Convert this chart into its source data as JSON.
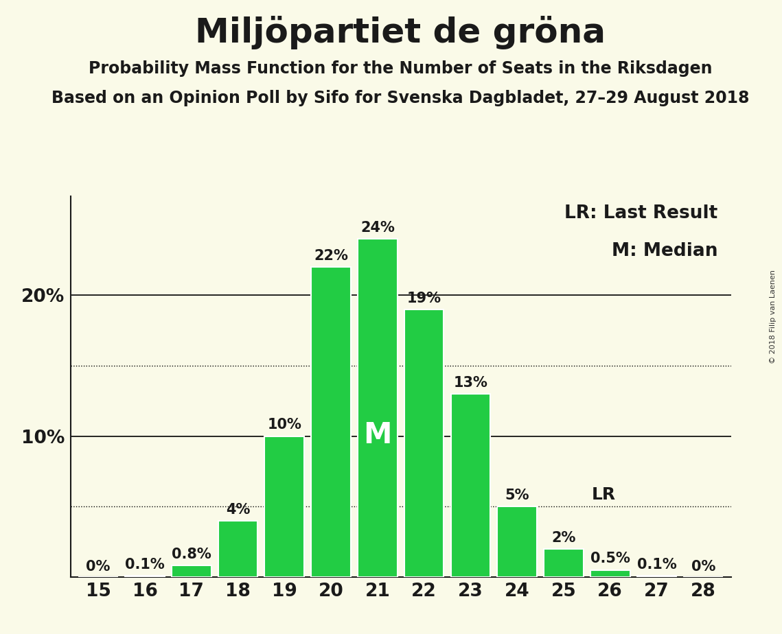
{
  "title": "Miljöpartiet de gröna",
  "subtitle1": "Probability Mass Function for the Number of Seats in the Riksdagen",
  "subtitle2": "Based on an Opinion Poll by Sifo for Svenska Dagbladet, 27–29 August 2018",
  "copyright": "© 2018 Filip van Laenen",
  "seats": [
    15,
    16,
    17,
    18,
    19,
    20,
    21,
    22,
    23,
    24,
    25,
    26,
    27,
    28
  ],
  "probabilities": [
    0.0,
    0.1,
    0.8,
    4.0,
    10.0,
    22.0,
    24.0,
    19.0,
    13.0,
    5.0,
    2.0,
    0.5,
    0.1,
    0.0
  ],
  "labels": [
    "0%",
    "0.1%",
    "0.8%",
    "4%",
    "10%",
    "22%",
    "24%",
    "19%",
    "13%",
    "5%",
    "2%",
    "0.5%",
    "0.1%",
    "0%"
  ],
  "bar_color": "#22cc44",
  "background_color": "#fafae8",
  "median_seat": 21,
  "lr_seat": 25,
  "lr_value": 4.7,
  "dotted_lines": [
    5.0,
    15.0
  ],
  "solid_lines": [
    10.0,
    20.0
  ],
  "legend_lr": "LR: Last Result",
  "legend_m": "M: Median",
  "title_fontsize": 36,
  "subtitle_fontsize": 17,
  "label_fontsize": 15,
  "tick_fontsize": 19,
  "legend_fontsize": 19,
  "ymax": 27,
  "xlim_left": 14.4,
  "xlim_right": 28.6
}
